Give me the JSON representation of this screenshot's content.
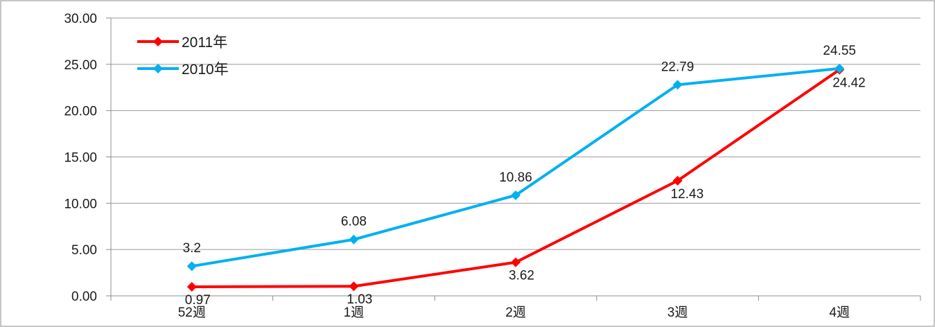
{
  "chart_data": {
    "type": "line",
    "categories": [
      "52週",
      "1週",
      "2週",
      "3週",
      "4週"
    ],
    "ylim": [
      0,
      30
    ],
    "yticks": [
      "0.00",
      "5.00",
      "10.00",
      "15.00",
      "20.00",
      "25.00",
      "30.00"
    ],
    "grid": true,
    "legend_position": "top-left",
    "series": [
      {
        "name": "2011年",
        "color": "#ff0000",
        "values": [
          0.97,
          1.03,
          3.62,
          12.43,
          24.42
        ],
        "labels": [
          "0.97",
          "1.03",
          "3.62",
          "12.43",
          "24.42"
        ]
      },
      {
        "name": "2010年",
        "color": "#00b0f0",
        "values": [
          3.2,
          6.08,
          10.86,
          22.79,
          24.55
        ],
        "labels": [
          "3.2",
          "6.08",
          "10.86",
          "22.79",
          "24.55"
        ]
      }
    ]
  }
}
